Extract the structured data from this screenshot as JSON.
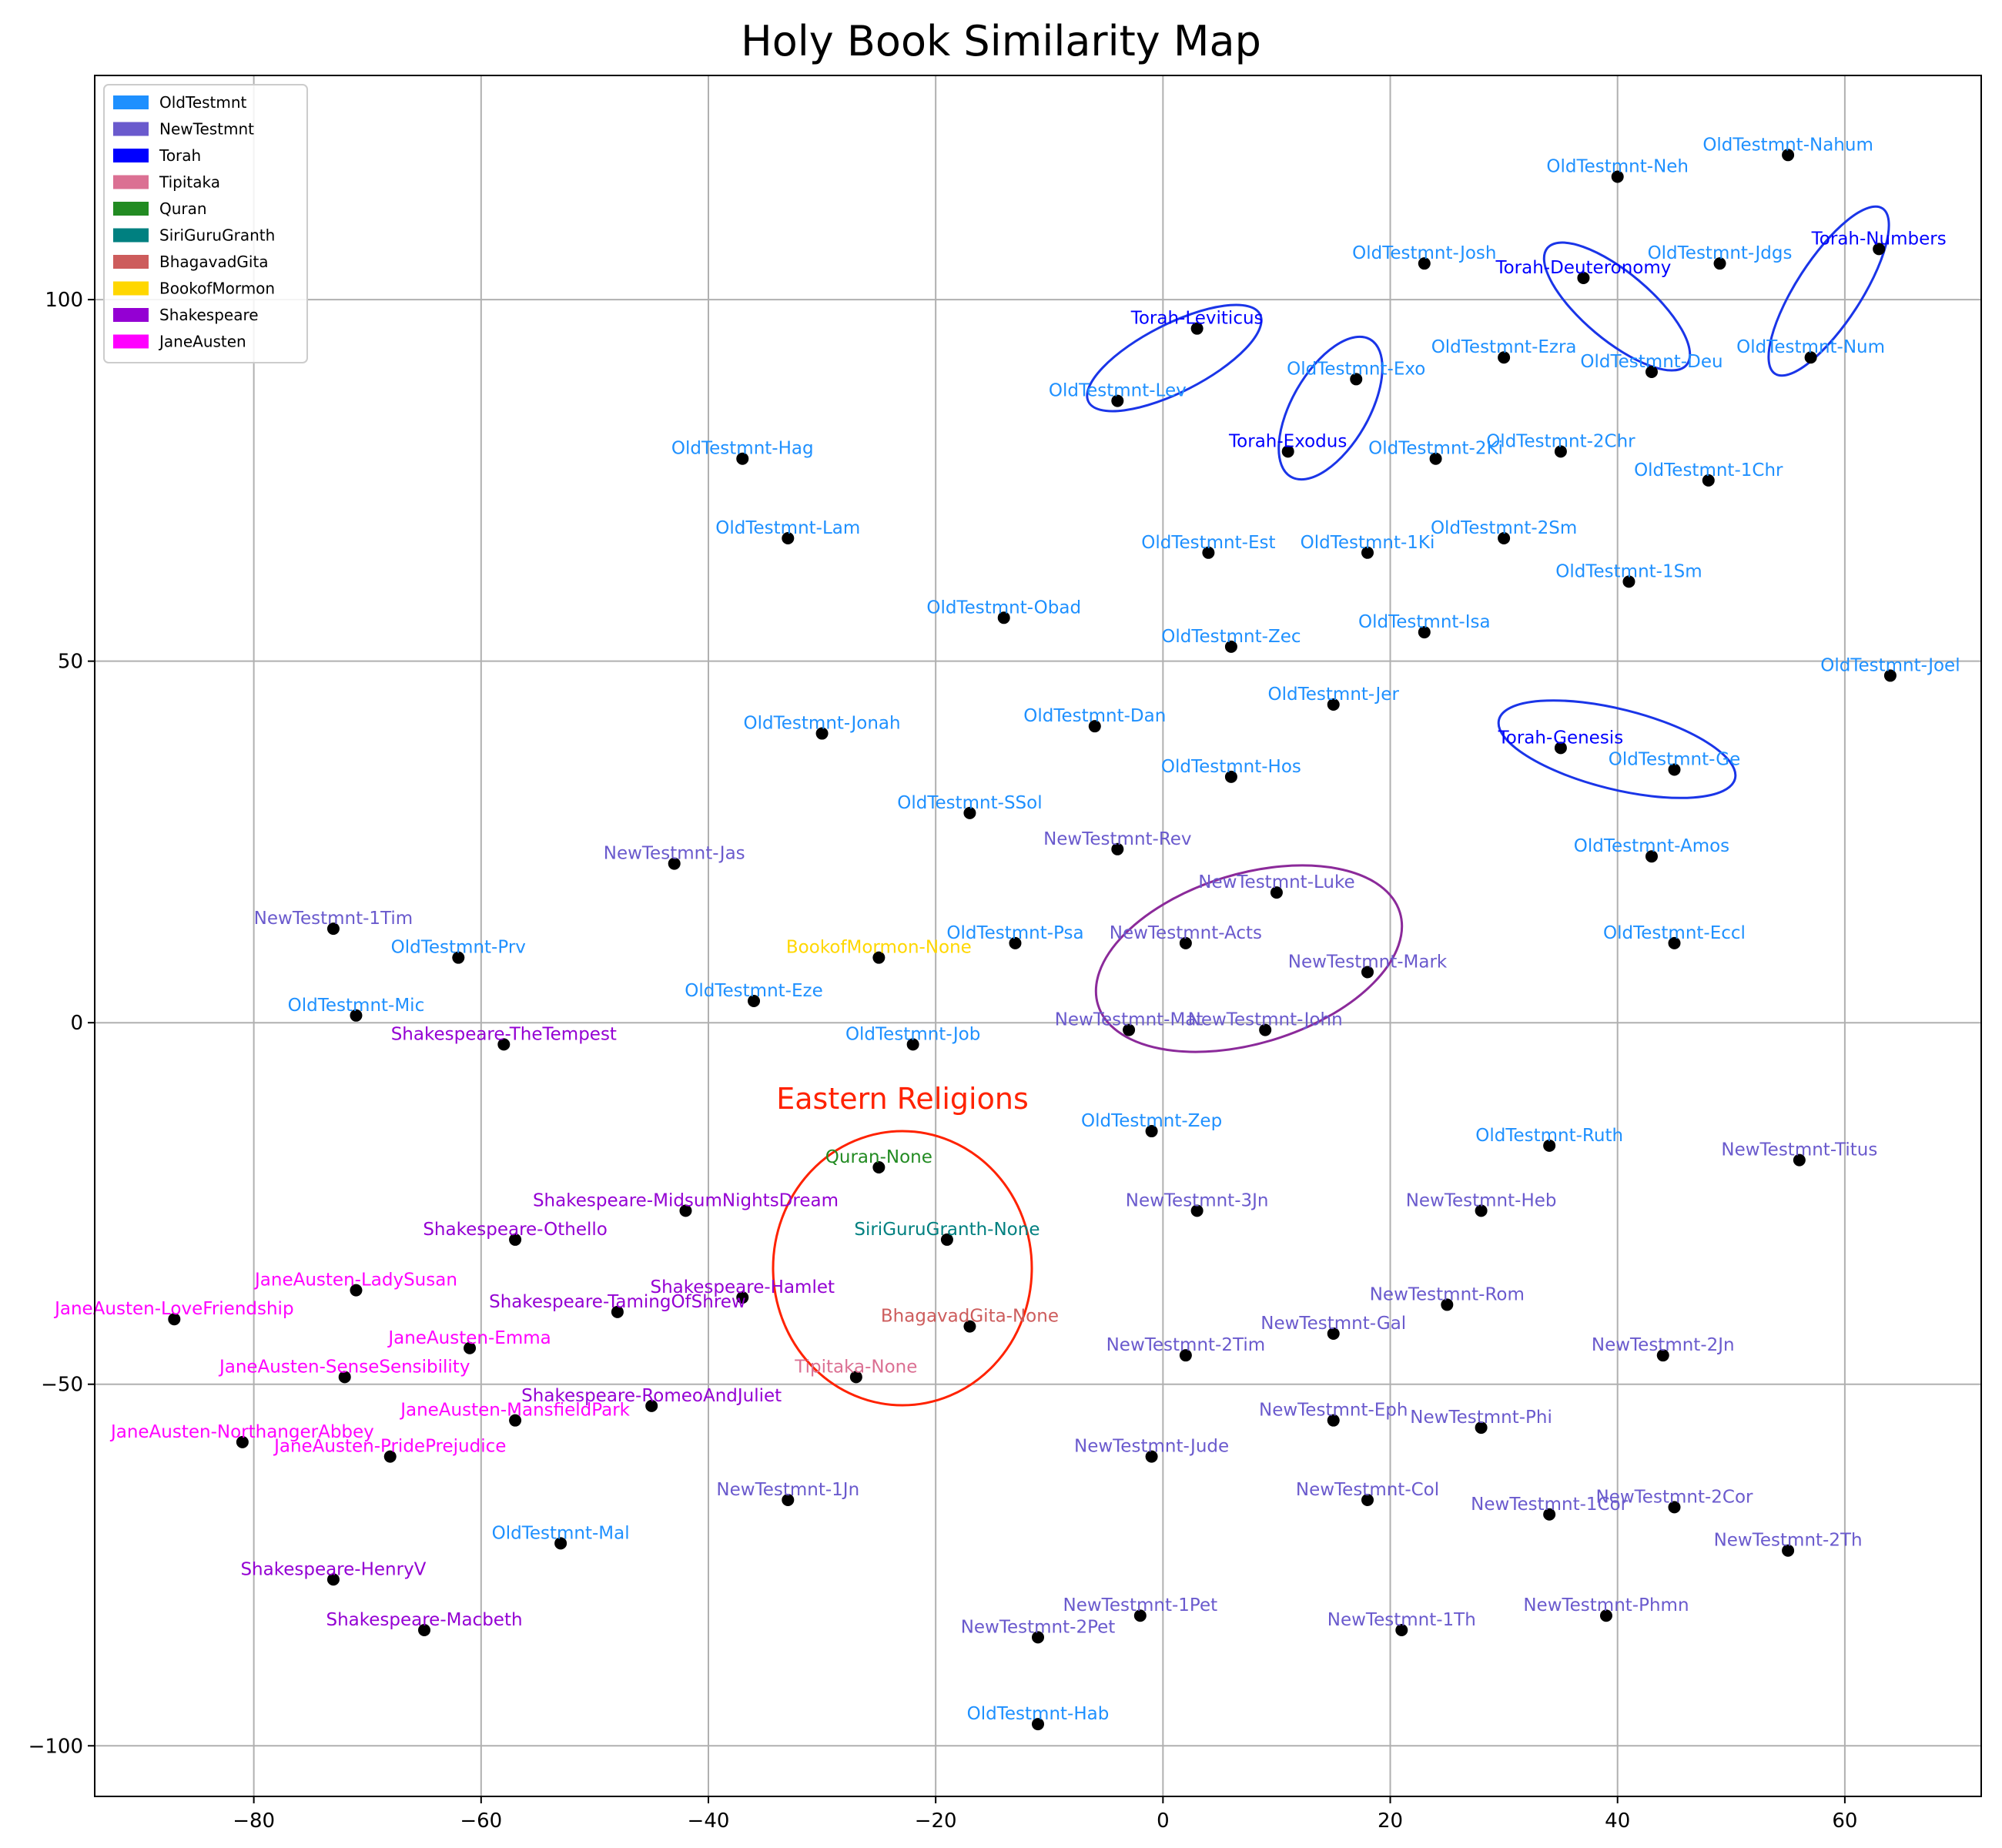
{
  "chart_data": {
    "type": "scatter",
    "title": "Holy Book Similarity Map",
    "xlabel": "",
    "ylabel": "",
    "xlim": [
      -94,
      72
    ],
    "ylim": [
      -107,
      131
    ],
    "xticks": [
      -80,
      -60,
      -40,
      -20,
      0,
      20,
      40,
      60
    ],
    "yticks": [
      -100,
      -50,
      0,
      50,
      100
    ],
    "grid": true,
    "legend_position": "top-left",
    "point_color": "#000000",
    "series": [
      {
        "name": "OldTestmnt",
        "color": "#1E90FF"
      },
      {
        "name": "NewTestmnt",
        "color": "#6A5ACD"
      },
      {
        "name": "Torah",
        "color": "#0000FF"
      },
      {
        "name": "Tipitaka",
        "color": "#DB7093"
      },
      {
        "name": "Quran",
        "color": "#228B22"
      },
      {
        "name": "SiriGuruGranth",
        "color": "#008080"
      },
      {
        "name": "BhagavadGita",
        "color": "#CD5C5C"
      },
      {
        "name": "BookofMormon",
        "color": "#FFD700"
      },
      {
        "name": "Shakespeare",
        "color": "#9400D3"
      },
      {
        "name": "JaneAusten",
        "color": "#FF00FF"
      }
    ],
    "points": [
      {
        "label": "OldTestmnt-Nahum",
        "series": "OldTestmnt",
        "x": 55,
        "y": 120
      },
      {
        "label": "OldTestmnt-Neh",
        "series": "OldTestmnt",
        "x": 40,
        "y": 117
      },
      {
        "label": "OldTestmnt-Josh",
        "series": "OldTestmnt",
        "x": 23,
        "y": 105
      },
      {
        "label": "OldTestmnt-Jdgs",
        "series": "OldTestmnt",
        "x": 49,
        "y": 105
      },
      {
        "label": "OldTestmnt-Ezra",
        "series": "OldTestmnt",
        "x": 30,
        "y": 92
      },
      {
        "label": "OldTestmnt-Exo",
        "series": "OldTestmnt",
        "x": 17,
        "y": 89
      },
      {
        "label": "OldTestmnt-Lev",
        "series": "OldTestmnt",
        "x": -4,
        "y": 86
      },
      {
        "label": "OldTestmnt-Deu",
        "series": "OldTestmnt",
        "x": 43,
        "y": 90
      },
      {
        "label": "OldTestmnt-Num",
        "series": "OldTestmnt",
        "x": 57,
        "y": 92
      },
      {
        "label": "OldTestmnt-Hag",
        "series": "OldTestmnt",
        "x": -37,
        "y": 78
      },
      {
        "label": "OldTestmnt-2Ki",
        "series": "OldTestmnt",
        "x": 24,
        "y": 78
      },
      {
        "label": "OldTestmnt-2Chr",
        "series": "OldTestmnt",
        "x": 35,
        "y": 79
      },
      {
        "label": "OldTestmnt-1Chr",
        "series": "OldTestmnt",
        "x": 48,
        "y": 75
      },
      {
        "label": "OldTestmnt-Lam",
        "series": "OldTestmnt",
        "x": -33,
        "y": 67
      },
      {
        "label": "OldTestmnt-Est",
        "series": "OldTestmnt",
        "x": 4,
        "y": 65
      },
      {
        "label": "OldTestmnt-1Ki",
        "series": "OldTestmnt",
        "x": 18,
        "y": 65
      },
      {
        "label": "OldTestmnt-2Sm",
        "series": "OldTestmnt",
        "x": 30,
        "y": 67
      },
      {
        "label": "OldTestmnt-1Sm",
        "series": "OldTestmnt",
        "x": 41,
        "y": 61
      },
      {
        "label": "OldTestmnt-Obad",
        "series": "OldTestmnt",
        "x": -14,
        "y": 56
      },
      {
        "label": "OldTestmnt-Isa",
        "series": "OldTestmnt",
        "x": 23,
        "y": 54
      },
      {
        "label": "OldTestmnt-Zec",
        "series": "OldTestmnt",
        "x": 6,
        "y": 52
      },
      {
        "label": "OldTestmnt-Joel",
        "series": "OldTestmnt",
        "x": 64,
        "y": 48
      },
      {
        "label": "OldTestmnt-Jer",
        "series": "OldTestmnt",
        "x": 15,
        "y": 44
      },
      {
        "label": "OldTestmnt-Jonah",
        "series": "OldTestmnt",
        "x": -30,
        "y": 40
      },
      {
        "label": "OldTestmnt-Dan",
        "series": "OldTestmnt",
        "x": -6,
        "y": 41
      },
      {
        "label": "OldTestmnt-Hos",
        "series": "OldTestmnt",
        "x": 6,
        "y": 34
      },
      {
        "label": "OldTestmnt-Ge",
        "series": "OldTestmnt",
        "x": 45,
        "y": 35
      },
      {
        "label": "OldTestmnt-SSol",
        "series": "OldTestmnt",
        "x": -17,
        "y": 29
      },
      {
        "label": "OldTestmnt-Amos",
        "series": "OldTestmnt",
        "x": 43,
        "y": 23
      },
      {
        "label": "OldTestmnt-Psa",
        "series": "OldTestmnt",
        "x": -13,
        "y": 11
      },
      {
        "label": "OldTestmnt-Eccl",
        "series": "OldTestmnt",
        "x": 45,
        "y": 11
      },
      {
        "label": "OldTestmnt-Prv",
        "series": "OldTestmnt",
        "x": -62,
        "y": 9
      },
      {
        "label": "OldTestmnt-Eze",
        "series": "OldTestmnt",
        "x": -36,
        "y": 3
      },
      {
        "label": "OldTestmnt-Mic",
        "series": "OldTestmnt",
        "x": -71,
        "y": 1
      },
      {
        "label": "OldTestmnt-Job",
        "series": "OldTestmnt",
        "x": -22,
        "y": -3
      },
      {
        "label": "OldTestmnt-Zep",
        "series": "OldTestmnt",
        "x": -1,
        "y": -15
      },
      {
        "label": "OldTestmnt-Ruth",
        "series": "OldTestmnt",
        "x": 34,
        "y": -17
      },
      {
        "label": "OldTestmnt-Mal",
        "series": "OldTestmnt",
        "x": -53,
        "y": -72
      },
      {
        "label": "OldTestmnt-Hab",
        "series": "OldTestmnt",
        "x": -11,
        "y": -97
      },
      {
        "label": "Torah-Numbers",
        "series": "Torah",
        "x": 63,
        "y": 107
      },
      {
        "label": "Torah-Deuteronomy",
        "series": "Torah",
        "x": 37,
        "y": 103
      },
      {
        "label": "Torah-Leviticus",
        "series": "Torah",
        "x": 3,
        "y": 96
      },
      {
        "label": "Torah-Exodus",
        "series": "Torah",
        "x": 11,
        "y": 79
      },
      {
        "label": "Torah-Genesis",
        "series": "Torah",
        "x": 35,
        "y": 38
      },
      {
        "label": "NewTestmnt-Rev",
        "series": "NewTestmnt",
        "x": -4,
        "y": 24
      },
      {
        "label": "NewTestmnt-Jas",
        "series": "NewTestmnt",
        "x": -43,
        "y": 22
      },
      {
        "label": "NewTestmnt-Luke",
        "series": "NewTestmnt",
        "x": 10,
        "y": 18
      },
      {
        "label": "NewTestmnt-1Tim",
        "series": "NewTestmnt",
        "x": -73,
        "y": 13
      },
      {
        "label": "NewTestmnt-Acts",
        "series": "NewTestmnt",
        "x": 2,
        "y": 11
      },
      {
        "label": "NewTestmnt-Mark",
        "series": "NewTestmnt",
        "x": 18,
        "y": 7
      },
      {
        "label": "NewTestmnt-Mat",
        "series": "NewTestmnt",
        "x": -3,
        "y": -1
      },
      {
        "label": "NewTestmnt-John",
        "series": "NewTestmnt",
        "x": 9,
        "y": -1
      },
      {
        "label": "NewTestmnt-Titus",
        "series": "NewTestmnt",
        "x": 56,
        "y": -19
      },
      {
        "label": "NewTestmnt-3Jn",
        "series": "NewTestmnt",
        "x": 3,
        "y": -26
      },
      {
        "label": "NewTestmnt-Heb",
        "series": "NewTestmnt",
        "x": 28,
        "y": -26
      },
      {
        "label": "NewTestmnt-Rom",
        "series": "NewTestmnt",
        "x": 25,
        "y": -39
      },
      {
        "label": "NewTestmnt-Gal",
        "series": "NewTestmnt",
        "x": 15,
        "y": -43
      },
      {
        "label": "NewTestmnt-2Tim",
        "series": "NewTestmnt",
        "x": 2,
        "y": -46
      },
      {
        "label": "NewTestmnt-2Jn",
        "series": "NewTestmnt",
        "x": 44,
        "y": -46
      },
      {
        "label": "NewTestmnt-Eph",
        "series": "NewTestmnt",
        "x": 15,
        "y": -55
      },
      {
        "label": "NewTestmnt-Phi",
        "series": "NewTestmnt",
        "x": 28,
        "y": -56
      },
      {
        "label": "NewTestmnt-Jude",
        "series": "NewTestmnt",
        "x": -1,
        "y": -60
      },
      {
        "label": "NewTestmnt-1Jn",
        "series": "NewTestmnt",
        "x": -33,
        "y": -66
      },
      {
        "label": "NewTestmnt-Col",
        "series": "NewTestmnt",
        "x": 18,
        "y": -66
      },
      {
        "label": "NewTestmnt-1Cor",
        "series": "NewTestmnt",
        "x": 34,
        "y": -68
      },
      {
        "label": "NewTestmnt-2Cor",
        "series": "NewTestmnt",
        "x": 45,
        "y": -67
      },
      {
        "label": "NewTestmnt-2Th",
        "series": "NewTestmnt",
        "x": 55,
        "y": -73
      },
      {
        "label": "NewTestmnt-1Pet",
        "series": "NewTestmnt",
        "x": -2,
        "y": -82
      },
      {
        "label": "NewTestmnt-2Pet",
        "series": "NewTestmnt",
        "x": -11,
        "y": -85
      },
      {
        "label": "NewTestmnt-1Th",
        "series": "NewTestmnt",
        "x": 21,
        "y": -84
      },
      {
        "label": "NewTestmnt-Phmn",
        "series": "NewTestmnt",
        "x": 39,
        "y": -82
      },
      {
        "label": "BookofMormon-None",
        "series": "BookofMormon",
        "x": -25,
        "y": 9
      },
      {
        "label": "Quran-None",
        "series": "Quran",
        "x": -25,
        "y": -20
      },
      {
        "label": "SiriGuruGranth-None",
        "series": "SiriGuruGranth",
        "x": -19,
        "y": -30
      },
      {
        "label": "BhagavadGita-None",
        "series": "BhagavadGita",
        "x": -17,
        "y": -42
      },
      {
        "label": "Tipitaka-None",
        "series": "Tipitaka",
        "x": -27,
        "y": -49
      },
      {
        "label": "Shakespeare-TheTempest",
        "series": "Shakespeare",
        "x": -58,
        "y": -3
      },
      {
        "label": "Shakespeare-MidsumNightsDream",
        "series": "Shakespeare",
        "x": -42,
        "y": -26
      },
      {
        "label": "Shakespeare-Othello",
        "series": "Shakespeare",
        "x": -57,
        "y": -30
      },
      {
        "label": "Shakespeare-Hamlet",
        "series": "Shakespeare",
        "x": -37,
        "y": -38
      },
      {
        "label": "Shakespeare-TamingOfShrew",
        "series": "Shakespeare",
        "x": -48,
        "y": -40
      },
      {
        "label": "Shakespeare-RomeoAndJuliet",
        "series": "Shakespeare",
        "x": -45,
        "y": -53
      },
      {
        "label": "Shakespeare-HenryV",
        "series": "Shakespeare",
        "x": -73,
        "y": -77
      },
      {
        "label": "Shakespeare-Macbeth",
        "series": "Shakespeare",
        "x": -65,
        "y": -84
      },
      {
        "label": "JaneAusten-LoveFriendship",
        "series": "JaneAusten",
        "x": -87,
        "y": -41
      },
      {
        "label": "JaneAusten-LadySusan",
        "series": "JaneAusten",
        "x": -71,
        "y": -37
      },
      {
        "label": "JaneAusten-Emma",
        "series": "JaneAusten",
        "x": -61,
        "y": -45
      },
      {
        "label": "JaneAusten-SenseSensibility",
        "series": "JaneAusten",
        "x": -72,
        "y": -49
      },
      {
        "label": "JaneAusten-MansfieldPark",
        "series": "JaneAusten",
        "x": -57,
        "y": -55
      },
      {
        "label": "JaneAusten-NorthangerAbbey",
        "series": "JaneAusten",
        "x": -81,
        "y": -58
      },
      {
        "label": "JaneAusten-PridePrejudice",
        "series": "JaneAusten",
        "x": -68,
        "y": -60
      }
    ],
    "annotations": [
      {
        "text": "Eastern Religions",
        "color": "#FF2200"
      }
    ]
  }
}
